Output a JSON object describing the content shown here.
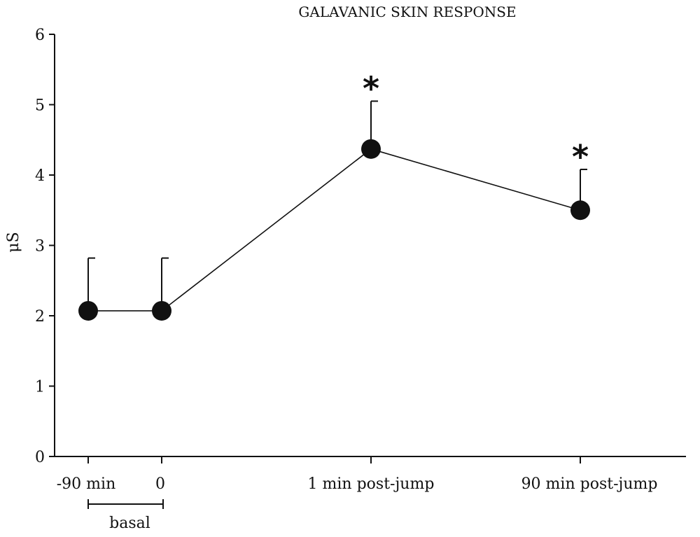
{
  "chart_data": {
    "type": "line",
    "title": "GALAVANIC SKIN RESPONSE",
    "xlabel": "",
    "ylabel": "μS",
    "ylim": [
      0,
      6
    ],
    "yticks": [
      0,
      1,
      2,
      3,
      4,
      5,
      6
    ],
    "categories": [
      "-90 min",
      "0",
      "1 min post-jump",
      "90 min post-jump"
    ],
    "values": [
      2.07,
      2.07,
      4.37,
      3.5
    ],
    "error_upper": [
      2.82,
      2.82,
      5.05,
      4.08
    ],
    "significance": [
      "",
      "",
      "*",
      "*"
    ],
    "bracket": {
      "label": "basal",
      "from": "-90 min",
      "to": "0"
    },
    "grid": false,
    "legend": "none",
    "colors": {
      "line": "#111111",
      "marker": "#111111",
      "axis": "#111111"
    }
  }
}
